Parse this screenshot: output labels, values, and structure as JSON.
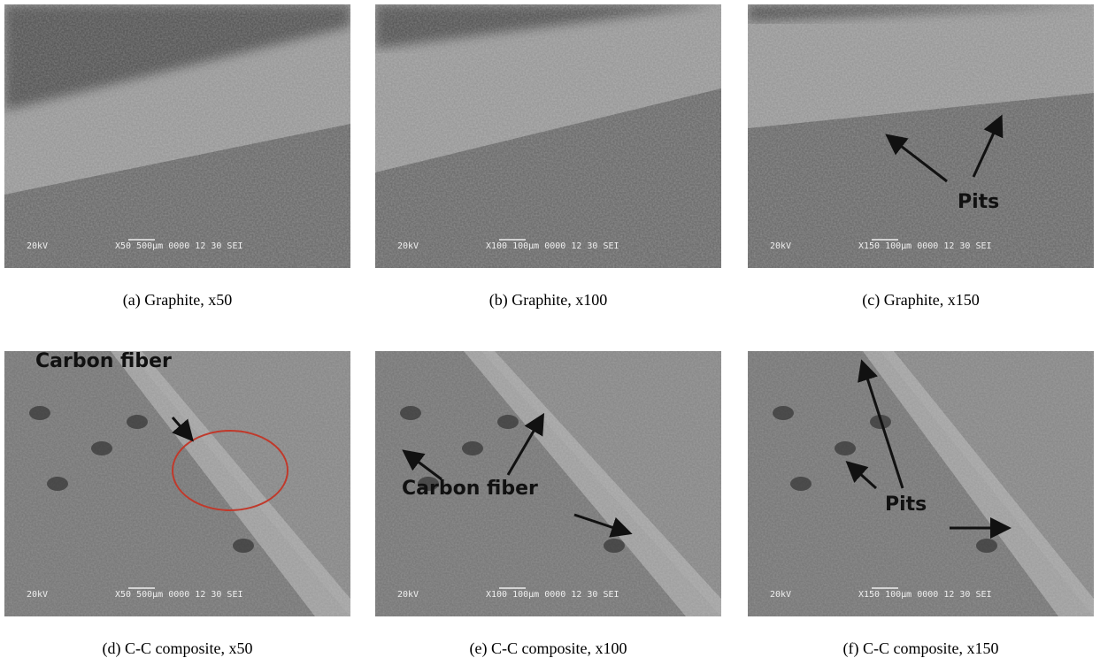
{
  "figure": {
    "panels": [
      {
        "caption": "(a) Graphite, x50",
        "info": {
          "voltage": "20kV",
          "scale": "X50 500µm 0000 12 30 SEI"
        },
        "annotations": []
      },
      {
        "caption": "(b) Graphite, x100",
        "info": {
          "voltage": "20kV",
          "scale": "X100 100µm 0000 12 30 SEI"
        },
        "annotations": []
      },
      {
        "caption": "(c) Graphite, x150",
        "info": {
          "voltage": "20kV",
          "scale": "X150 100µm 0000 12 30 SEI"
        },
        "annotations": [
          "Pits"
        ]
      },
      {
        "caption": "(d) C-C composite, x50",
        "info": {
          "voltage": "20kV",
          "scale": "X50 500µm 0000 12 30 SEI"
        },
        "annotations": [
          "Carbon fiber"
        ]
      },
      {
        "caption": "(e) C-C composite, x100",
        "info": {
          "voltage": "20kV",
          "scale": "X100 100µm 0000 12 30 SEI"
        },
        "annotations": [
          "Carbon fiber"
        ]
      },
      {
        "caption": "(f) C-C composite, x150",
        "info": {
          "voltage": "20kV",
          "scale": "X150 100µm 0000 12 30 SEI"
        },
        "annotations": [
          "Pits"
        ]
      }
    ]
  }
}
